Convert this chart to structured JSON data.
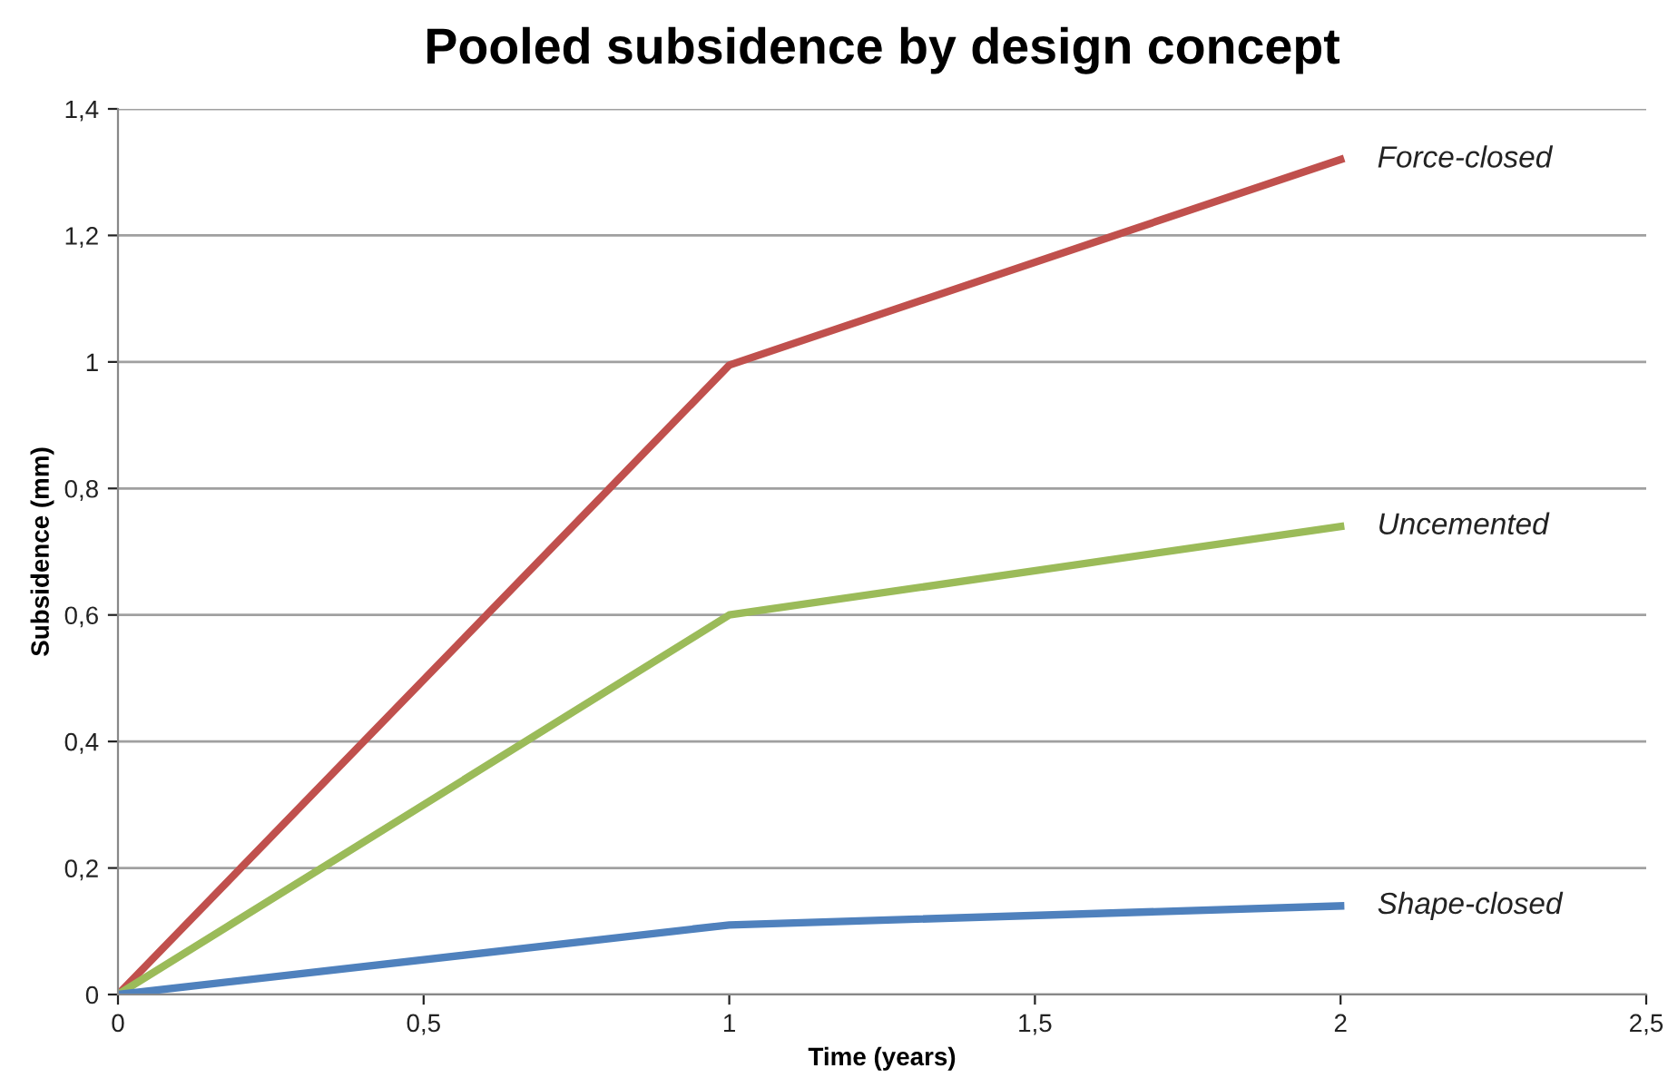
{
  "chart_data": {
    "type": "line",
    "title": "Pooled subsidence by design concept",
    "xlabel": "Time (years)",
    "ylabel": "Subsidence (mm)",
    "x": [
      0,
      1,
      2
    ],
    "series": [
      {
        "name": "Force-closed",
        "color": "#c0504d",
        "values": [
          0,
          0.995,
          1.32
        ]
      },
      {
        "name": "Uncemented",
        "color": "#9bbb59",
        "values": [
          0,
          0.6,
          0.74
        ]
      },
      {
        "name": "Shape-closed",
        "color": "#4f81bd",
        "values": [
          0,
          0.11,
          0.14
        ]
      }
    ],
    "xlim": [
      0,
      2.5
    ],
    "xticks": [
      0,
      {
        "value": 0.5,
        "label": "0,5"
      },
      1,
      {
        "value": 1.5,
        "label": "1,5"
      },
      2,
      {
        "value": 2.5,
        "label": "2,5"
      }
    ],
    "ylim": [
      0,
      1.4
    ],
    "yticks": [
      0,
      {
        "value": 0.2,
        "label": "0,2"
      },
      {
        "value": 0.4,
        "label": "0,4"
      },
      {
        "value": 0.6,
        "label": "0,6"
      },
      {
        "value": 0.8,
        "label": "0,8"
      },
      1,
      {
        "value": 1.2,
        "label": "1,2"
      },
      {
        "value": 1.4,
        "label": "1,4"
      }
    ],
    "grid": "y",
    "marker": "none",
    "line_style": "solid",
    "legend": false
  }
}
